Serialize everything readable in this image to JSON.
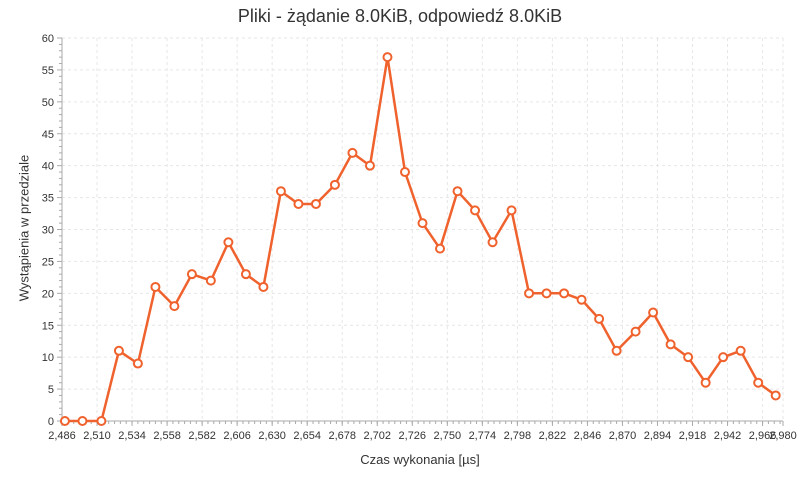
{
  "chart_data": {
    "type": "line",
    "title": "Pliki - żądanie 8.0KiB, odpowiedź 8.0KiB",
    "xlabel": "Czas wykonania [µs]",
    "ylabel": "Wystąpienia w przedziale",
    "xlim": [
      2486,
      2980
    ],
    "ylim": [
      0,
      60
    ],
    "x_ticks": [
      "2,486",
      "2,510",
      "2,534",
      "2,558",
      "2,582",
      "2,606",
      "2,630",
      "2,654",
      "2,678",
      "2,702",
      "2,726",
      "2,750",
      "2,774",
      "2,798",
      "2,822",
      "2,846",
      "2,870",
      "2,894",
      "2,918",
      "2,942",
      "2,966",
      "2,980"
    ],
    "y_ticks": [
      0,
      5,
      10,
      15,
      20,
      25,
      30,
      35,
      40,
      45,
      50,
      55,
      60
    ],
    "grid": true,
    "series": [
      {
        "color": "#f0622d",
        "x": [
          2488,
          2500,
          2513,
          2525,
          2538,
          2550,
          2563,
          2575,
          2588,
          2600,
          2612,
          2624,
          2636,
          2648,
          2660,
          2673,
          2685,
          2697,
          2709,
          2721,
          2733,
          2745,
          2757,
          2769,
          2781,
          2794,
          2806,
          2818,
          2830,
          2842,
          2854,
          2866,
          2879,
          2891,
          2903,
          2915,
          2927,
          2939,
          2951,
          2963,
          2975
        ],
        "y": [
          0,
          0,
          0,
          11,
          9,
          21,
          18,
          23,
          22,
          28,
          23,
          21,
          36,
          34,
          34,
          37,
          42,
          40,
          57,
          39,
          31,
          27,
          36,
          33,
          28,
          33,
          20,
          20,
          20,
          19,
          16,
          11,
          14,
          17,
          12,
          10,
          6,
          10,
          11,
          6,
          4
        ]
      }
    ]
  }
}
